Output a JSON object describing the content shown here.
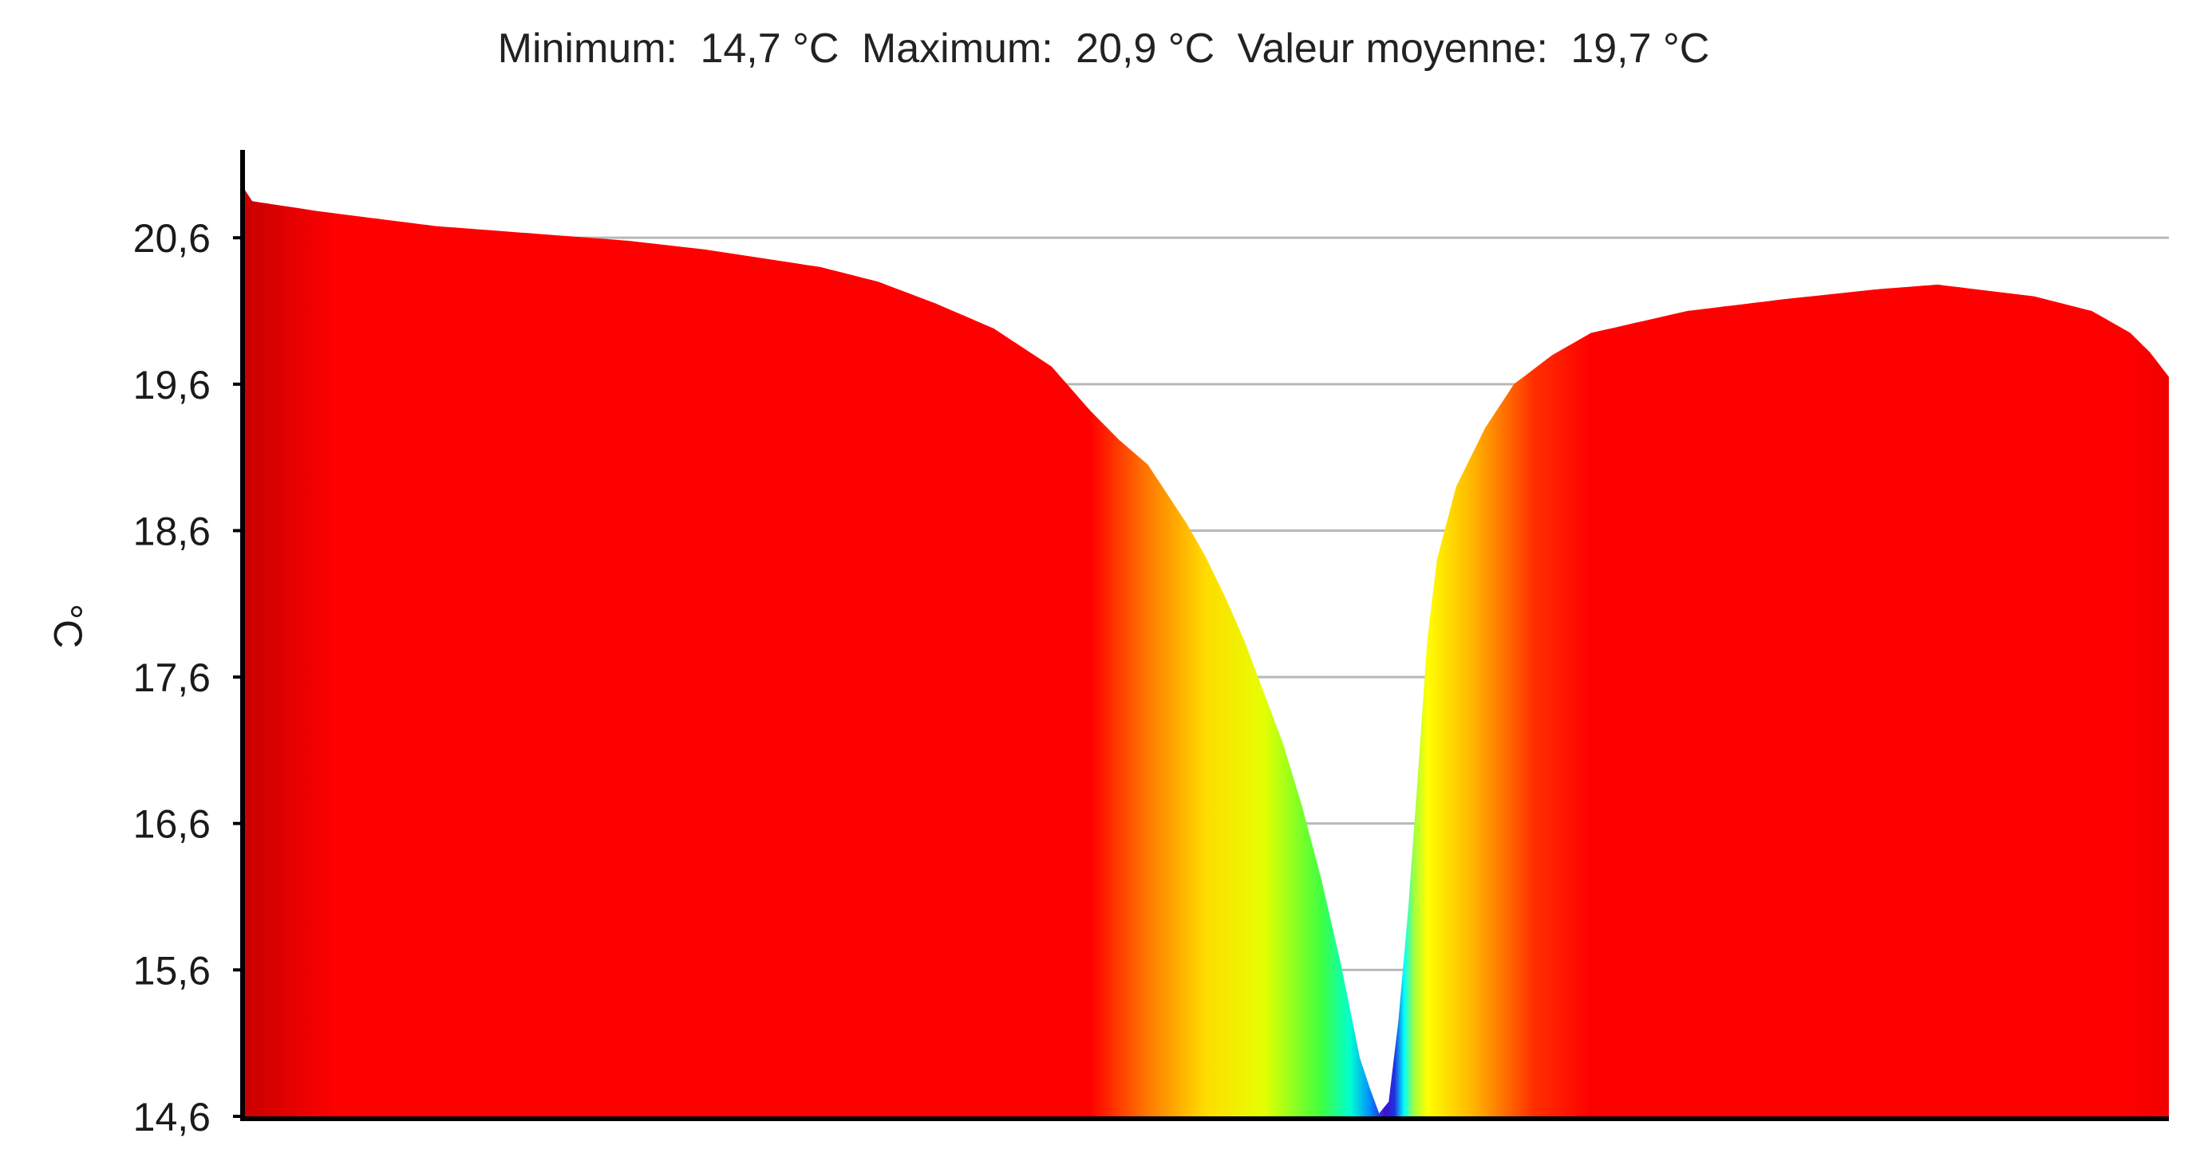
{
  "chart_data": {
    "type": "area",
    "stats": [
      {
        "label": "Minimum:",
        "value": "14,7 °C"
      },
      {
        "label": "Maximum:",
        "value": "20,9 °C"
      },
      {
        "label": "Valeur moyenne:",
        "value": "19,7 °C"
      }
    ],
    "ylabel": "°C",
    "ylim": [
      14.6,
      21.2
    ],
    "yticks": [
      14.6,
      15.6,
      16.6,
      17.6,
      18.6,
      19.6,
      20.6
    ],
    "ytick_labels": [
      "14,6",
      "15,6",
      "16,6",
      "17,6",
      "18,6",
      "19,6",
      "20,6"
    ],
    "grid": "horizontal",
    "color_scale": "temperature: red (hot) → yellow → green → cyan → blue → violet (cold)",
    "x": [
      0,
      0.005,
      0.04,
      0.1,
      0.2,
      0.24,
      0.3,
      0.33,
      0.36,
      0.39,
      0.42,
      0.44,
      0.455,
      0.47,
      0.48,
      0.49,
      0.5,
      0.51,
      0.52,
      0.53,
      0.54,
      0.55,
      0.56,
      0.57,
      0.58,
      0.585,
      0.59,
      0.595,
      0.6,
      0.605,
      0.61,
      0.615,
      0.62,
      0.63,
      0.645,
      0.66,
      0.68,
      0.7,
      0.75,
      0.8,
      0.85,
      0.88,
      0.93,
      0.96,
      0.98,
      0.99,
      1.0
    ],
    "y": [
      20.95,
      20.85,
      20.78,
      20.68,
      20.58,
      20.52,
      20.4,
      20.3,
      20.15,
      19.98,
      19.72,
      19.42,
      19.22,
      19.05,
      18.85,
      18.65,
      18.42,
      18.15,
      17.85,
      17.5,
      17.15,
      16.72,
      16.22,
      15.65,
      15.0,
      14.8,
      14.62,
      14.7,
      15.25,
      16.0,
      16.9,
      17.85,
      18.4,
      18.9,
      19.3,
      19.6,
      19.8,
      19.95,
      20.1,
      20.18,
      20.25,
      20.28,
      20.2,
      20.1,
      19.95,
      19.82,
      19.65
    ]
  }
}
